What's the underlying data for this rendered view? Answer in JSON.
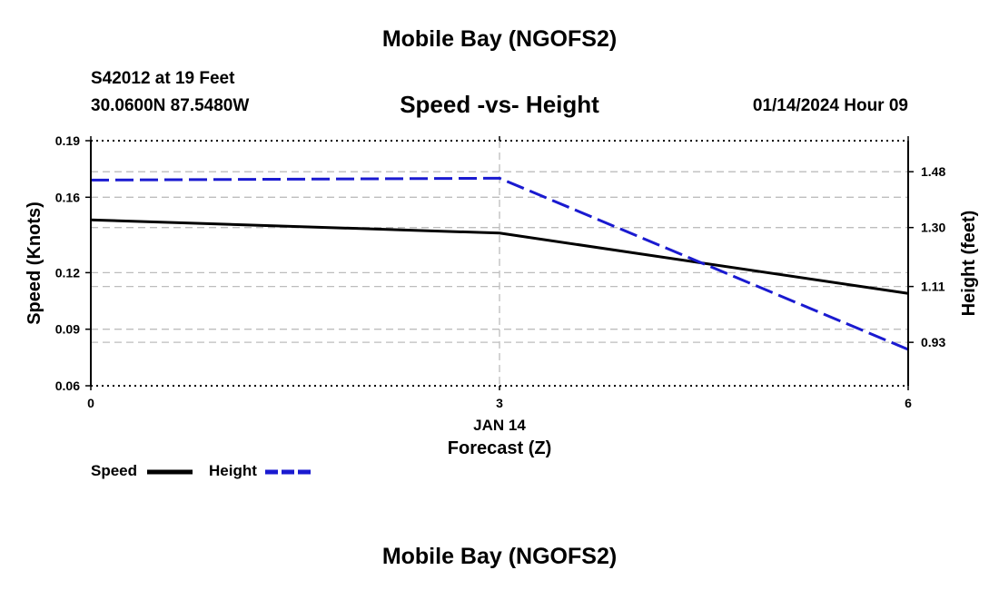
{
  "header": {
    "title": "Mobile Bay (NGOFS2)",
    "station": "S42012 at 19 Feet",
    "coords": "30.0600N  87.5480W",
    "datetime": "01/14/2024 Hour 09"
  },
  "footer": {
    "title": "Mobile Bay (NGOFS2)"
  },
  "legend": {
    "speed_label": "Speed",
    "height_label": "Height"
  },
  "colors": {
    "speed": "#000000",
    "height": "#1a1ad0",
    "grid": "#bdbdbd"
  },
  "chart_data": {
    "type": "line",
    "title": "Speed -vs- Height",
    "xlabel": "Forecast (Z)",
    "x_date_label": "JAN 14",
    "ylabel_left": "Speed (Knots)",
    "ylabel_right": "Height (feet)",
    "x": [
      0,
      3,
      6
    ],
    "x_ticks": [
      "0",
      "3",
      "6"
    ],
    "xlim": [
      0,
      6
    ],
    "ylim_left": [
      0.06,
      0.19
    ],
    "y_ticks_left": [
      "0.19",
      "0.16",
      "0.12",
      "0.09",
      "0.06"
    ],
    "y_ticks_left_values": [
      0.19,
      0.16,
      0.12,
      0.09,
      0.06
    ],
    "ylim_right": [
      0.79,
      1.58
    ],
    "y_ticks_right": [
      "1.48",
      "1.30",
      "1.11",
      "0.93"
    ],
    "y_ticks_right_values": [
      1.48,
      1.3,
      1.11,
      0.93
    ],
    "series": [
      {
        "name": "Speed",
        "axis": "left",
        "style": "solid",
        "values": [
          0.148,
          0.141,
          0.109
        ]
      },
      {
        "name": "Height",
        "axis": "right",
        "style": "dashed",
        "values": [
          1.453,
          1.459,
          0.907
        ]
      }
    ]
  }
}
